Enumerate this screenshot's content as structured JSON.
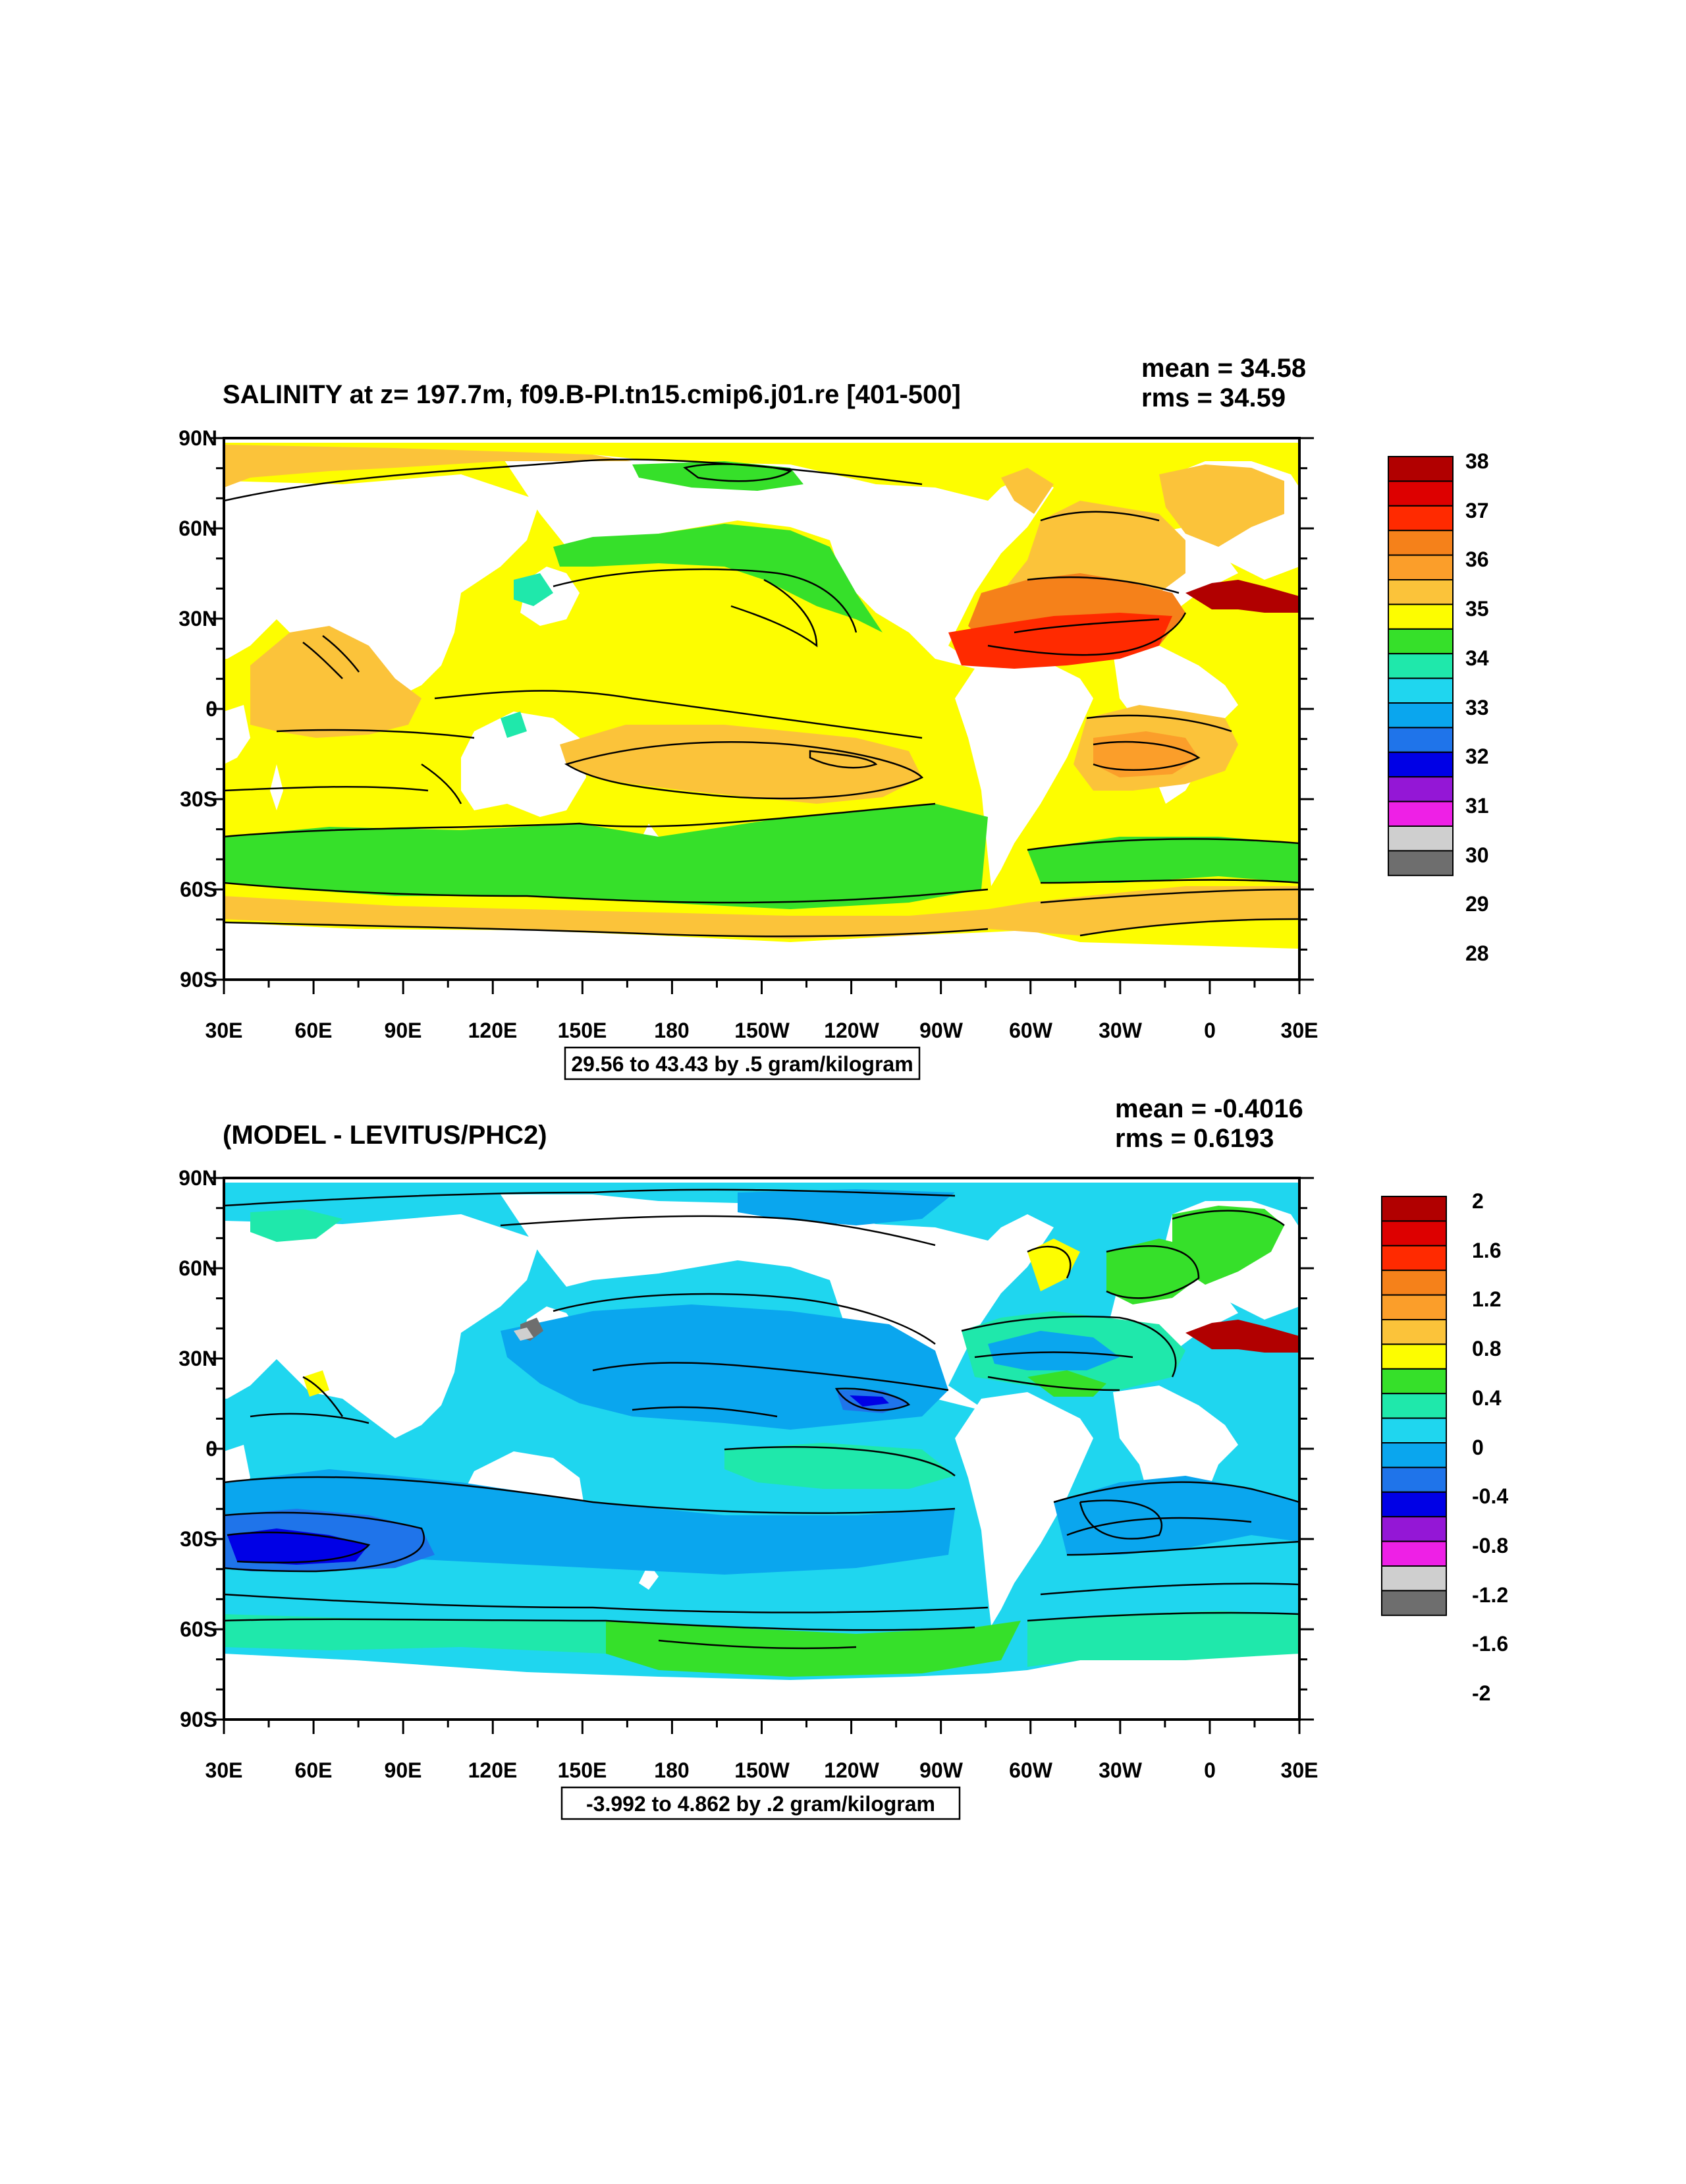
{
  "panels": [
    {
      "title": "SALINITY at z= 197.7m, f09.B-PI.tn15.cmip6.j01.re [401-500]",
      "mean": "mean = 34.58",
      "rms": "rms = 34.59",
      "range_label": "29.56 to 43.43 by .5 gram/kilogram",
      "lat_labels": [
        "90N",
        "60N",
        "30N",
        "0",
        "30S",
        "60S",
        "90S"
      ],
      "lon_labels": [
        "30E",
        "60E",
        "90E",
        "120E",
        "150E",
        "180",
        "150W",
        "120W",
        "90W",
        "60W",
        "30W",
        "0",
        "30E"
      ],
      "colorbar": {
        "colors": [
          "#b10000",
          "#dd0000",
          "#ff2a00",
          "#f5811a",
          "#fb9e2a",
          "#fbc33a",
          "#fdfd00",
          "#36e02a",
          "#1fe8ab",
          "#1fd6ef",
          "#0aa6ee",
          "#1f74ea",
          "#0000e6",
          "#9417d6",
          "#ee20e6",
          "#cfcfcf",
          "#6e6e6e"
        ],
        "labels": [
          "38",
          "37",
          "36",
          "35",
          "34",
          "33",
          "32",
          "31",
          "30",
          "29",
          "28"
        ]
      }
    },
    {
      "title": "(MODEL - LEVITUS/PHC2)",
      "mean": "mean = -0.4016",
      "rms": "rms = 0.6193",
      "range_label": "-3.992 to 4.862 by .2 gram/kilogram",
      "lat_labels": [
        "90N",
        "60N",
        "30N",
        "0",
        "30S",
        "60S",
        "90S"
      ],
      "lon_labels": [
        "30E",
        "60E",
        "90E",
        "120E",
        "150E",
        "180",
        "150W",
        "120W",
        "90W",
        "60W",
        "30W",
        "0",
        "30E"
      ],
      "colorbar": {
        "colors": [
          "#b10000",
          "#dd0000",
          "#ff2a00",
          "#f5811a",
          "#fb9e2a",
          "#fbc33a",
          "#fdfd00",
          "#36e02a",
          "#1fe8ab",
          "#1fd6ef",
          "#0aa6ee",
          "#1f74ea",
          "#0000e6",
          "#9417d6",
          "#ee20e6",
          "#cfcfcf",
          "#6e6e6e"
        ],
        "labels": [
          "2",
          "1.6",
          "1.2",
          "0.8",
          "0.4",
          "0",
          "-0.4",
          "-0.8",
          "-1.2",
          "-1.6",
          "-2"
        ]
      }
    }
  ]
}
